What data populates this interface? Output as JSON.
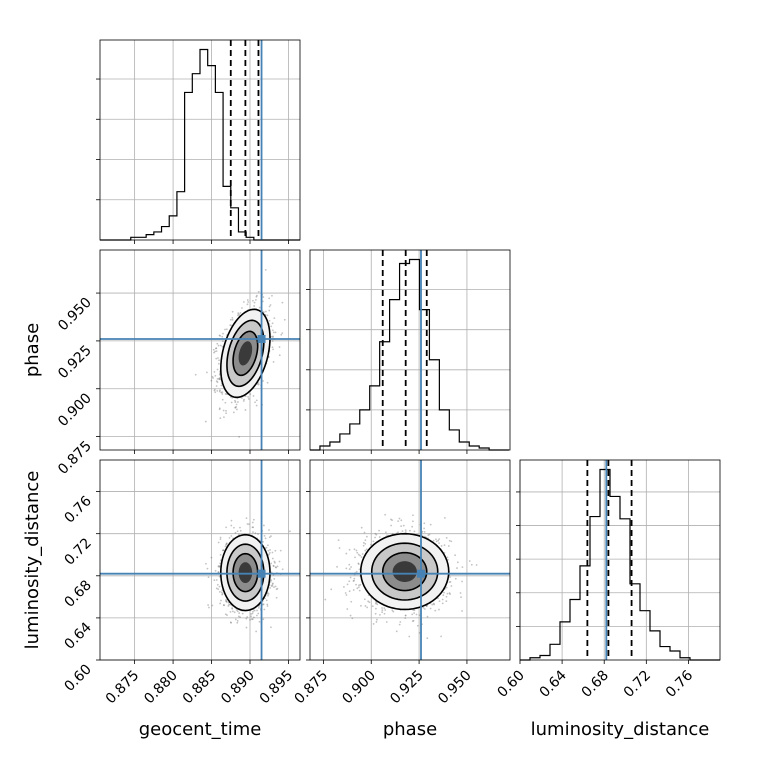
{
  "chart_data": {
    "type": "corner",
    "parameters": [
      "geocent_time",
      "phase",
      "luminosity_distance"
    ],
    "truth_color": "#4682b4",
    "truths": {
      "geocent_time": 0.8915,
      "phase": 0.926,
      "luminosity_distance": 0.682
    },
    "ranges": {
      "geocent_time": [
        0.8705,
        0.8965
      ],
      "phase": [
        0.868,
        0.9725
      ],
      "luminosity_distance": [
        0.6,
        0.79
      ]
    },
    "ticks": {
      "geocent_time": {
        "values": [
          0.875,
          0.88,
          0.885,
          0.89,
          0.895
        ],
        "labels": [
          "0.875",
          "0.880",
          "0.885",
          "0.890",
          "0.895"
        ]
      },
      "phase": {
        "values": [
          0.875,
          0.9,
          0.925,
          0.95
        ],
        "labels": [
          "0.875",
          "0.900",
          "0.925",
          "0.950"
        ]
      },
      "luminosity_distance": {
        "values": [
          0.6,
          0.64,
          0.68,
          0.72,
          0.76
        ],
        "labels": [
          "0.60",
          "0.64",
          "0.68",
          "0.72",
          "0.76"
        ]
      }
    },
    "quantiles": {
      "geocent_time": [
        0.8875,
        0.8894,
        0.8911
      ],
      "phase": [
        0.906,
        0.918,
        0.929
      ],
      "luminosity_distance": [
        0.664,
        0.684,
        0.706
      ]
    },
    "histograms": {
      "geocent_time": {
        "start": 0.8705,
        "step": 0.001,
        "counts": [
          0,
          0,
          0,
          0,
          1,
          1,
          2,
          3,
          5,
          9,
          18,
          55,
          62,
          71,
          65,
          55,
          20,
          12,
          3,
          1,
          0,
          0,
          0,
          0,
          0,
          0
        ]
      },
      "phase": {
        "start": 0.868,
        "step": 0.0052,
        "counts": [
          0,
          2,
          4,
          8,
          13,
          20,
          32,
          54,
          75,
          93,
          95,
          70,
          45,
          20,
          10,
          4,
          2,
          1,
          0,
          0
        ]
      },
      "luminosity_distance": {
        "start": 0.6,
        "step": 0.0095,
        "counts": [
          0,
          1,
          2,
          7,
          17,
          27,
          42,
          64,
          85,
          73,
          63,
          34,
          22,
          13,
          6,
          4,
          1,
          0,
          0,
          0
        ]
      }
    },
    "joint": [
      {
        "x": "geocent_time",
        "y": "phase",
        "cx": 0.8894,
        "cy": 0.9185,
        "sx": 0.0016,
        "sy": 0.0115,
        "rho": 0.35
      },
      {
        "x": "geocent_time",
        "y": "luminosity_distance",
        "cx": 0.8894,
        "cy": 0.683,
        "sx": 0.0016,
        "sy": 0.018,
        "rho": 0.0
      },
      {
        "x": "phase",
        "y": "luminosity_distance",
        "cx": 0.9175,
        "cy": 0.684,
        "sx": 0.0115,
        "sy": 0.018,
        "rho": 0.0
      }
    ]
  }
}
